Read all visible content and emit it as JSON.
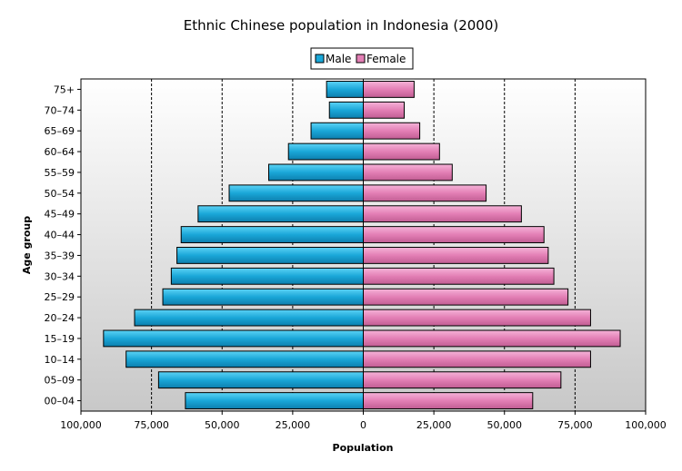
{
  "chart_data": {
    "type": "bar",
    "orientation": "horizontal",
    "title": "Ethnic Chinese population in Indonesia (2000)",
    "xlabel": "Population",
    "ylabel": "Age group",
    "xlim": [
      -100000,
      100000
    ],
    "x_ticks": [
      -100000,
      -75000,
      -50000,
      -25000,
      0,
      25000,
      50000,
      75000,
      100000
    ],
    "x_tick_labels": [
      "100,000",
      "75,000",
      "50,000",
      "25,000",
      "0",
      "25,000",
      "50,000",
      "75,000",
      "100,000"
    ],
    "grid": "vertical dashed",
    "legend_position": "top-center",
    "categories": [
      "00–04",
      "05–09",
      "10–14",
      "15–19",
      "20–24",
      "25–29",
      "30–34",
      "35–39",
      "40–44",
      "45–49",
      "50–54",
      "55–59",
      "60–64",
      "65–69",
      "70–74",
      "75+"
    ],
    "series": [
      {
        "name": "Male",
        "color": "#1aa7d8",
        "values": [
          63000,
          72500,
          84000,
          92000,
          81000,
          71000,
          68000,
          66000,
          64500,
          58500,
          47500,
          33500,
          26500,
          18500,
          12000,
          13000
        ]
      },
      {
        "name": "Female",
        "color": "#e37fb5",
        "values": [
          60000,
          70000,
          80500,
          91000,
          80500,
          72500,
          67500,
          65500,
          64000,
          56000,
          43500,
          31500,
          27000,
          20000,
          14500,
          18000
        ]
      }
    ]
  }
}
